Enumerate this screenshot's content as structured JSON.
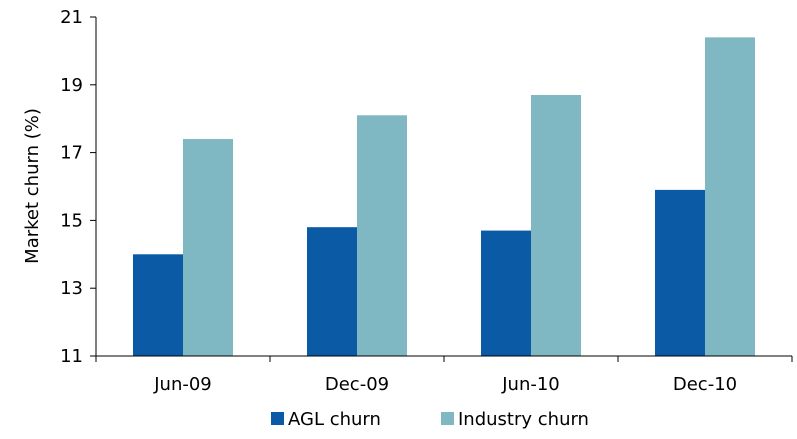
{
  "chart_data": {
    "type": "bar",
    "categories": [
      "Jun-09",
      "Dec-09",
      "Jun-10",
      "Dec-10"
    ],
    "series": [
      {
        "name": "AGL churn",
        "values": [
          14.0,
          14.8,
          14.7,
          15.9
        ],
        "color": "#0b5aa6"
      },
      {
        "name": "Industry churn",
        "values": [
          17.4,
          18.1,
          18.7,
          20.4
        ],
        "color": "#7fb8c2"
      }
    ],
    "ylabel": "Market churn (%)",
    "xlabel": "",
    "ylim": [
      11,
      21
    ],
    "yticks": [
      11,
      13,
      15,
      17,
      19,
      21
    ],
    "grid": false,
    "legend_position": "bottom"
  }
}
